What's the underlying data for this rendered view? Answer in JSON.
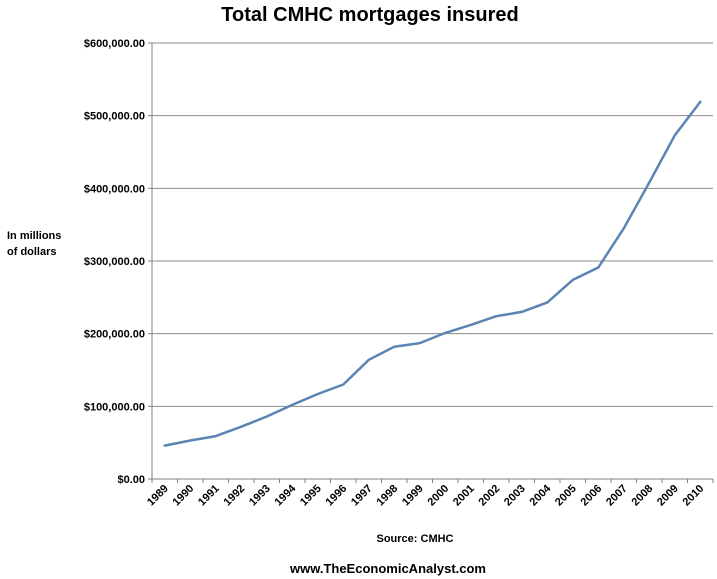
{
  "chart_data": {
    "type": "line",
    "title": "Total CMHC mortgages insured",
    "ylabel_lines": [
      "In millions",
      "of dollars"
    ],
    "xlabel": "Source:  CMHC",
    "footer": "www.TheEconomicAnalyst.com",
    "categories": [
      "1989",
      "1990",
      "1991",
      "1992",
      "1993",
      "1994",
      "1995",
      "1996",
      "1997",
      "1998",
      "1999",
      "2000",
      "2001",
      "2002",
      "2003",
      "2004",
      "2005",
      "2006",
      "2007",
      "2008",
      "2009",
      "2010"
    ],
    "y_ticks": [
      "$0.00",
      "$100,000.00",
      "$200,000.00",
      "$300,000.00",
      "$400,000.00",
      "$500,000.00",
      "$600,000.00"
    ],
    "ylim": [
      0,
      600000
    ],
    "grid": true,
    "line_color": "#5b84b3",
    "series": [
      {
        "values": [
          46000,
          53000,
          59000,
          72000,
          86000,
          102000,
          117000,
          130000,
          164000,
          182000,
          187000,
          201000,
          212000,
          224000,
          230000,
          243000,
          274000,
          291000,
          345000,
          408000,
          473000,
          519000
        ]
      }
    ]
  }
}
